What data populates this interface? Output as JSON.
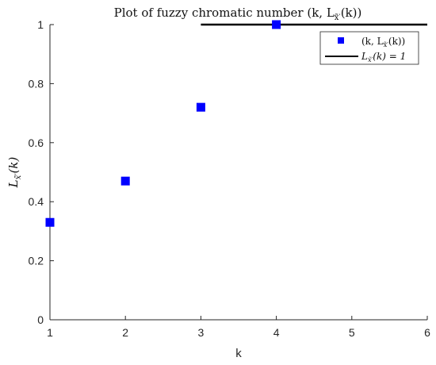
{
  "chart_data": {
    "type": "scatter",
    "title": "Plot of fuzzy chromatic number (k, L",
    "title_sub": "x̃′",
    "title_end": "(k))",
    "xlabel": "k",
    "ylabel": "L",
    "ylabel_sub": "x̃′",
    "ylabel_end": "(k)",
    "xlim": [
      1,
      6
    ],
    "ylim": [
      0,
      1
    ],
    "x_ticks": [
      1,
      2,
      3,
      4,
      5,
      6
    ],
    "y_ticks": [
      0,
      0.2,
      0.4,
      0.6,
      0.8,
      1
    ],
    "y_tick_labels": [
      "0",
      "0.2",
      "0.4",
      "0.6",
      "0.8",
      "1"
    ],
    "grid": false,
    "legend_position": "top-right",
    "series": [
      {
        "name": "(k, L",
        "name_sub": "x̃′",
        "name_end": "(k))",
        "marker": "square",
        "color": "#0000ff",
        "x": [
          1,
          2,
          3,
          4
        ],
        "y": [
          0.33,
          0.47,
          0.72,
          1.0
        ]
      },
      {
        "name": "L",
        "name_sub": "x̃′",
        "name_end": "(k) = 1",
        "type": "line",
        "color": "#000000",
        "x": [
          3,
          6
        ],
        "y": [
          1,
          1
        ]
      }
    ]
  }
}
